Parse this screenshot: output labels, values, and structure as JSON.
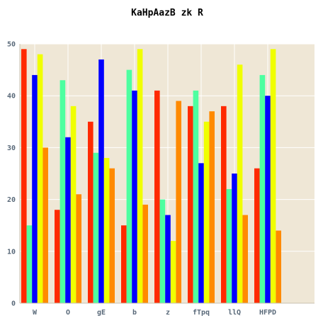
{
  "chart_data": {
    "type": "bar",
    "title": "KaHpAazB zk R",
    "xlabel": "",
    "ylabel": "",
    "categories": [
      "W",
      "O",
      "gE",
      "b",
      "z",
      "fTpq",
      "llQ",
      "HFPD"
    ],
    "ylim": [
      0,
      50
    ],
    "yticks": [
      0,
      10,
      20,
      30,
      40,
      50
    ],
    "grid": true,
    "legend": "none",
    "background_color": "#efe7d6",
    "grid_color": "#ffffff",
    "series": [
      {
        "color": "#ff2a00",
        "values": [
          49,
          18,
          35,
          15,
          41,
          38,
          38,
          26
        ]
      },
      {
        "color": "#4dffa0",
        "values": [
          15,
          43,
          29,
          45,
          20,
          41,
          22,
          44
        ]
      },
      {
        "color": "#0000ff",
        "values": [
          44,
          32,
          47,
          41,
          17,
          27,
          25,
          40
        ]
      },
      {
        "color": "#f0ff00",
        "values": [
          48,
          38,
          28,
          49,
          12,
          35,
          46,
          49
        ]
      },
      {
        "color": "#ff8a00",
        "values": [
          30,
          21,
          26,
          19,
          39,
          37,
          17,
          14
        ]
      }
    ]
  }
}
